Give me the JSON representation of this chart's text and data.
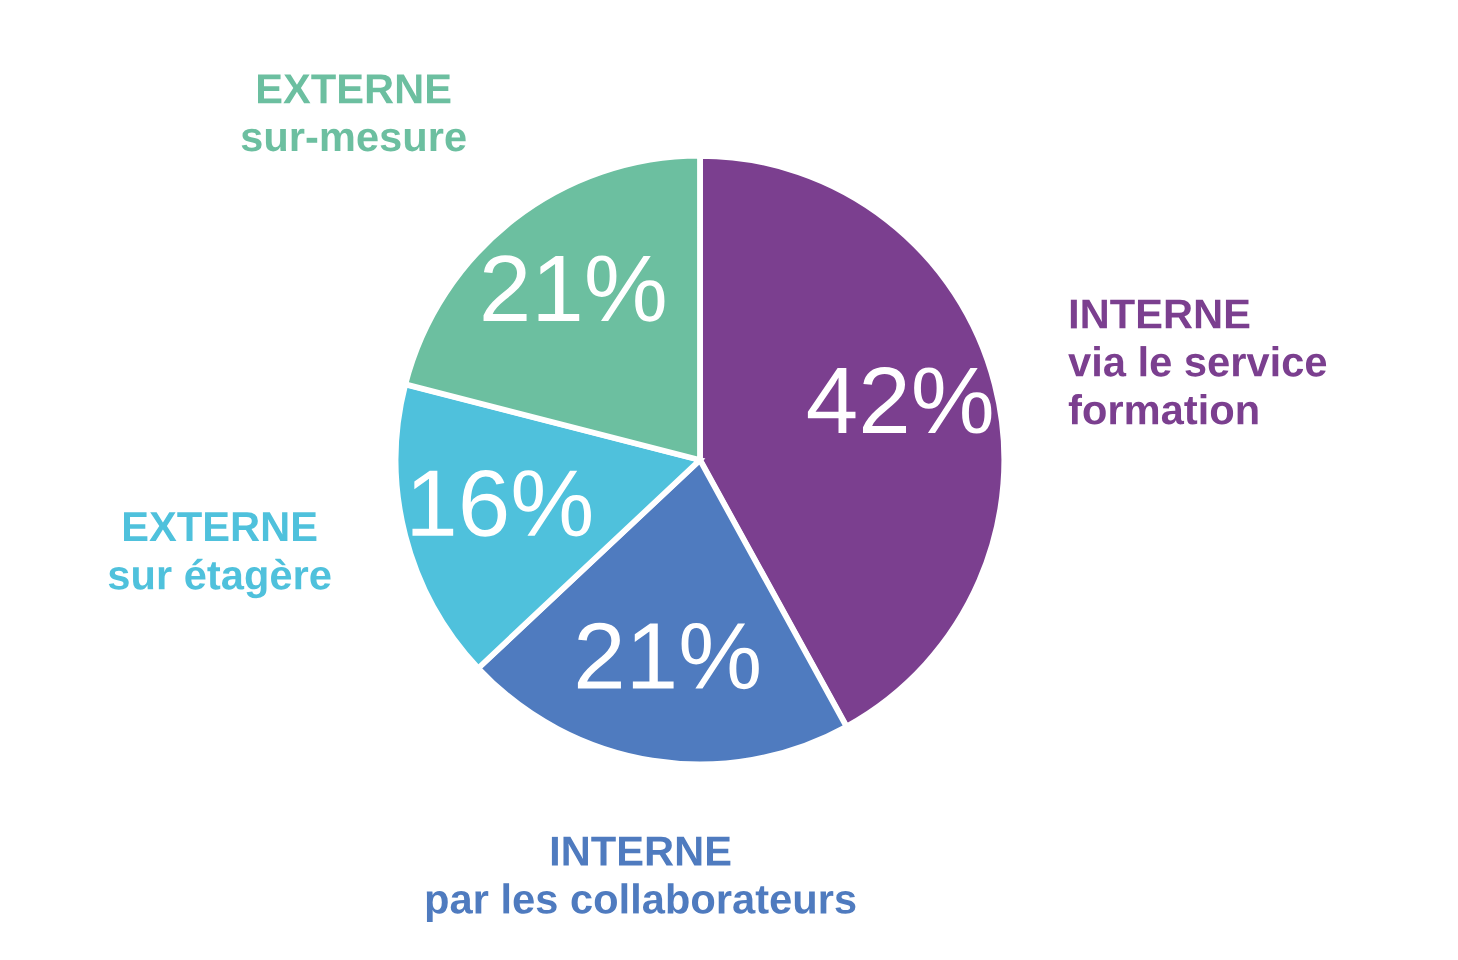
{
  "chart_data": {
    "type": "pie",
    "categories": [
      "INTERNE\nvia le service\nformation",
      "INTERNE\npar les collaborateurs",
      "EXTERNE\nsur étagère",
      "EXTERNE\nsur-mesure"
    ],
    "values": [
      42,
      21,
      16,
      21
    ],
    "colors": [
      "#7b3f8f",
      "#4f7bbf",
      "#4fc1dc",
      "#6cbfa0"
    ],
    "value_labels": [
      "42%",
      "21%",
      "16%",
      "21%"
    ]
  }
}
